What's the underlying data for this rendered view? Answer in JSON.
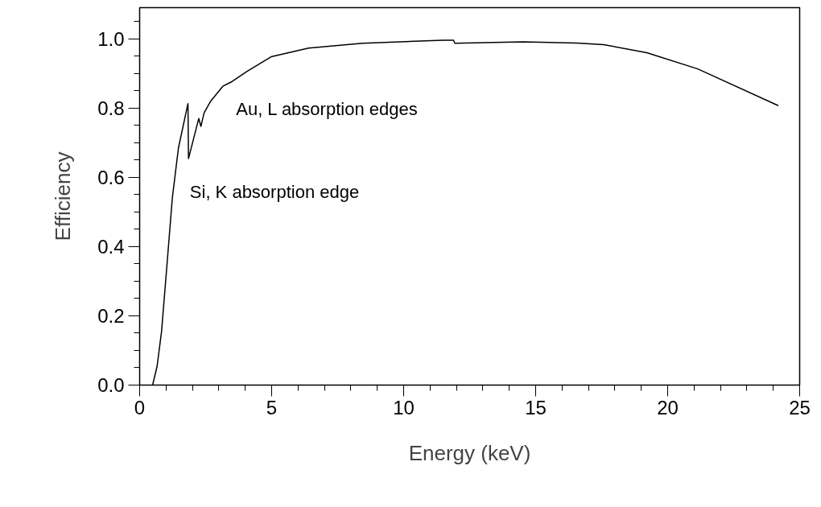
{
  "chart_data": {
    "type": "line",
    "xlabel": "Energy (keV)",
    "ylabel": "Efficiency",
    "x": [
      0.49,
      0.66,
      0.83,
      1.04,
      1.24,
      1.47,
      1.83,
      1.85,
      2.24,
      2.32,
      2.44,
      2.69,
      3.15,
      3.46,
      4.07,
      4.98,
      6.4,
      8.44,
      11.48,
      11.89,
      11.94,
      14.53,
      16.57,
      17.58,
      19.21,
      21.14,
      24.19
    ],
    "series": [
      {
        "color": "#000000",
        "values": [
          0.0,
          0.054,
          0.155,
          0.352,
          0.542,
          0.685,
          0.813,
          0.654,
          0.77,
          0.747,
          0.786,
          0.82,
          0.863,
          0.875,
          0.906,
          0.948,
          0.973,
          0.987,
          0.996,
          0.996,
          0.987,
          0.991,
          0.988,
          0.983,
          0.96,
          0.913,
          0.807
        ]
      }
    ],
    "xlim": [
      0,
      25
    ],
    "ylim": [
      0,
      1.09
    ],
    "xticks": [
      0,
      5,
      10,
      15,
      20,
      25,
      {
        "value": 1,
        "label": null
      },
      {
        "value": 2,
        "label": null
      },
      {
        "value": 3,
        "label": null
      },
      {
        "value": 4,
        "label": null
      },
      {
        "value": 6,
        "label": null
      },
      {
        "value": 7,
        "label": null
      },
      {
        "value": 8,
        "label": null
      },
      {
        "value": 9,
        "label": null
      },
      {
        "value": 11,
        "label": null
      },
      {
        "value": 12,
        "label": null
      },
      {
        "value": 13,
        "label": null
      },
      {
        "value": 14,
        "label": null
      },
      {
        "value": 16,
        "label": null
      },
      {
        "value": 17,
        "label": null
      },
      {
        "value": 18,
        "label": null
      },
      {
        "value": 19,
        "label": null
      },
      {
        "value": 21,
        "label": null
      },
      {
        "value": 22,
        "label": null
      },
      {
        "value": 23,
        "label": null
      },
      {
        "value": 24,
        "label": null
      }
    ],
    "yticks": [
      {
        "value": 0,
        "label": "0.0"
      },
      0.2,
      0.4,
      0.6,
      0.8,
      {
        "value": 1,
        "label": "1.0"
      },
      {
        "value": 0.05,
        "label": null
      },
      {
        "value": 0.1,
        "label": null
      },
      {
        "value": 0.15,
        "label": null
      },
      {
        "value": 0.25,
        "label": null
      },
      {
        "value": 0.3,
        "label": null
      },
      {
        "value": 0.35,
        "label": null
      },
      {
        "value": 0.45,
        "label": null
      },
      {
        "value": 0.5,
        "label": null
      },
      {
        "value": 0.55,
        "label": null
      },
      {
        "value": 0.65,
        "label": null
      },
      {
        "value": 0.7,
        "label": null
      },
      {
        "value": 0.75,
        "label": null
      },
      {
        "value": 0.85,
        "label": null
      },
      {
        "value": 0.9,
        "label": null
      },
      {
        "value": 0.95,
        "label": null
      },
      {
        "value": 1.05,
        "label": null
      }
    ],
    "annotations": [
      "Au, L absorption edges",
      "Si, K absorption edge"
    ],
    "grid": false
  }
}
